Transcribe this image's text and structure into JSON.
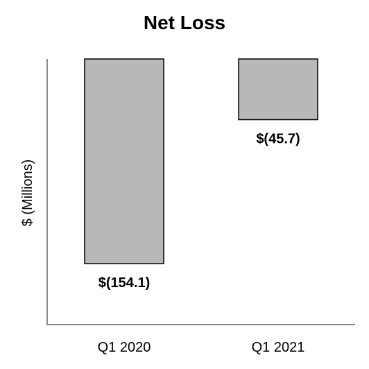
{
  "chart_data": {
    "type": "bar",
    "title": "Net Loss",
    "xlabel": "",
    "ylabel": "$ (Millions)",
    "categories": [
      "Q1 2020",
      "Q1 2021"
    ],
    "values": [
      -154.1,
      -45.7
    ],
    "data_labels": [
      "$(154.1)",
      "$(45.7)"
    ],
    "ylim": [
      -200,
      0
    ],
    "grid": false,
    "legend": "none",
    "colors": {
      "bar": "#b8b8b8",
      "bar_edge": "#000000",
      "axis": "#8c8c8c"
    }
  }
}
